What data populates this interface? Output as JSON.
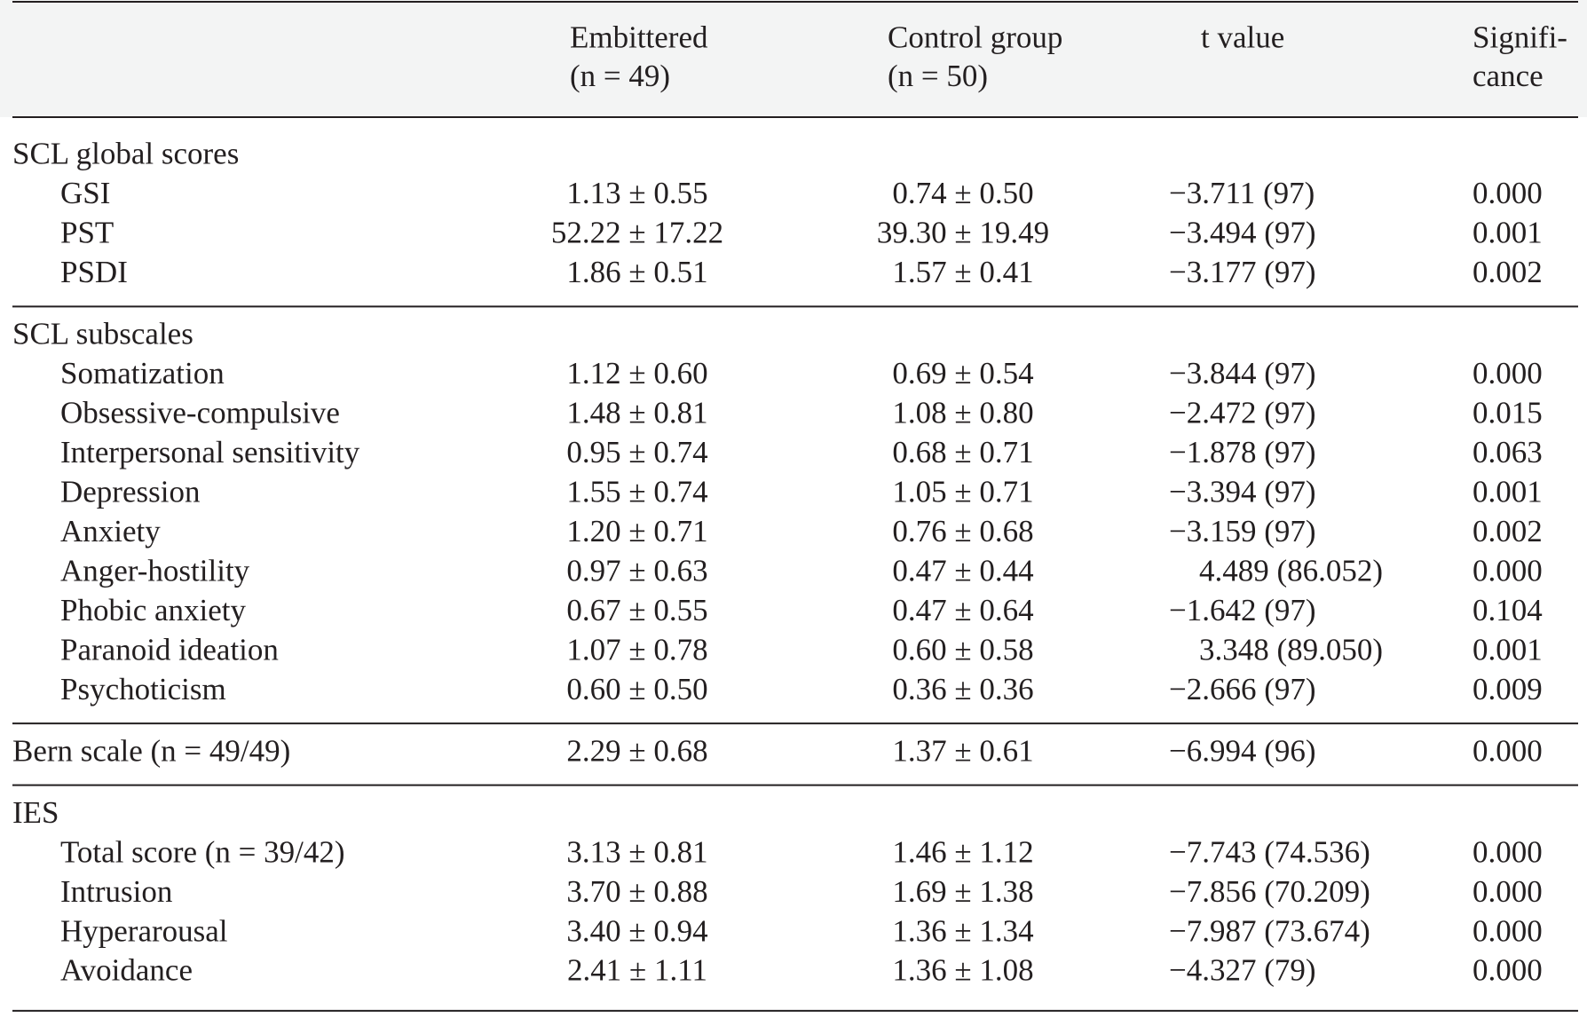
{
  "table": {
    "header": [
      [
        "Embittered",
        "(n = 49)"
      ],
      [
        "Control group",
        "(n = 50)"
      ],
      [
        "t value"
      ],
      [
        "Signifi-",
        "cance"
      ]
    ],
    "sections": [
      {
        "title": "SCL global scores",
        "rows": [
          [
            "GSI",
            "1.13 ± 0.55",
            "0.74 ± 0.50",
            "−3.711 (97)",
            "0.000"
          ],
          [
            "PST",
            "52.22 ± 17.22",
            "39.30 ± 19.49",
            "−3.494 (97)",
            "0.001"
          ],
          [
            "PSDI",
            "1.86 ± 0.51",
            "1.57 ± 0.41",
            "−3.177 (97)",
            "0.002"
          ]
        ]
      },
      {
        "title": "SCL subscales",
        "rows": [
          [
            "Somatization",
            "1.12 ± 0.60",
            "0.69 ± 0.54",
            "−3.844 (97)",
            "0.000"
          ],
          [
            "Obsessive-compulsive",
            "1.48 ± 0.81",
            "1.08 ± 0.80",
            "−2.472 (97)",
            "0.015"
          ],
          [
            "Interpersonal sensitivity",
            "0.95 ± 0.74",
            "0.68 ± 0.71",
            "−1.878 (97)",
            "0.063"
          ],
          [
            "Depression",
            "1.55 ± 0.74",
            "1.05 ± 0.71",
            "−3.394 (97)",
            "0.001"
          ],
          [
            "Anxiety",
            "1.20 ± 0.71",
            "0.76 ± 0.68",
            "−3.159 (97)",
            "0.002"
          ],
          [
            "Anger-hostility",
            "0.97 ± 0.63",
            "0.47 ± 0.44",
            "4.489 (86.052)",
            "0.000"
          ],
          [
            "Phobic anxiety",
            "0.67 ± 0.55",
            "0.47 ± 0.64",
            "−1.642 (97)",
            "0.104"
          ],
          [
            "Paranoid ideation",
            "1.07 ± 0.78",
            "0.60 ± 0.58",
            "3.348 (89.050)",
            "0.001"
          ],
          [
            "Psychoticism",
            "0.60 ± 0.50",
            "0.36 ± 0.36",
            "−2.666 (97)",
            "0.009"
          ]
        ]
      },
      {
        "rows": [
          [
            "Bern scale (n = 49/49)",
            "2.29 ± 0.68",
            "1.37 ± 0.61",
            "−6.994 (96)",
            "0.000"
          ]
        ]
      },
      {
        "title": "IES",
        "rows": [
          [
            "Total score (n = 39/42)",
            "3.13 ± 0.81",
            "1.46 ± 1.12",
            "−7.743 (74.536)",
            "0.000"
          ],
          [
            "Intrusion",
            "3.70 ± 0.88",
            "1.69 ± 1.38",
            "−7.856 (70.209)",
            "0.000"
          ],
          [
            "Hyperarousal",
            "3.40 ± 0.94",
            "1.36 ± 1.34",
            "−7.987 (73.674)",
            "0.000"
          ],
          [
            "Avoidance",
            "2.41 ± 1.11",
            "1.36 ± 1.08",
            "−4.327 (79)",
            "0.000"
          ]
        ]
      }
    ]
  }
}
